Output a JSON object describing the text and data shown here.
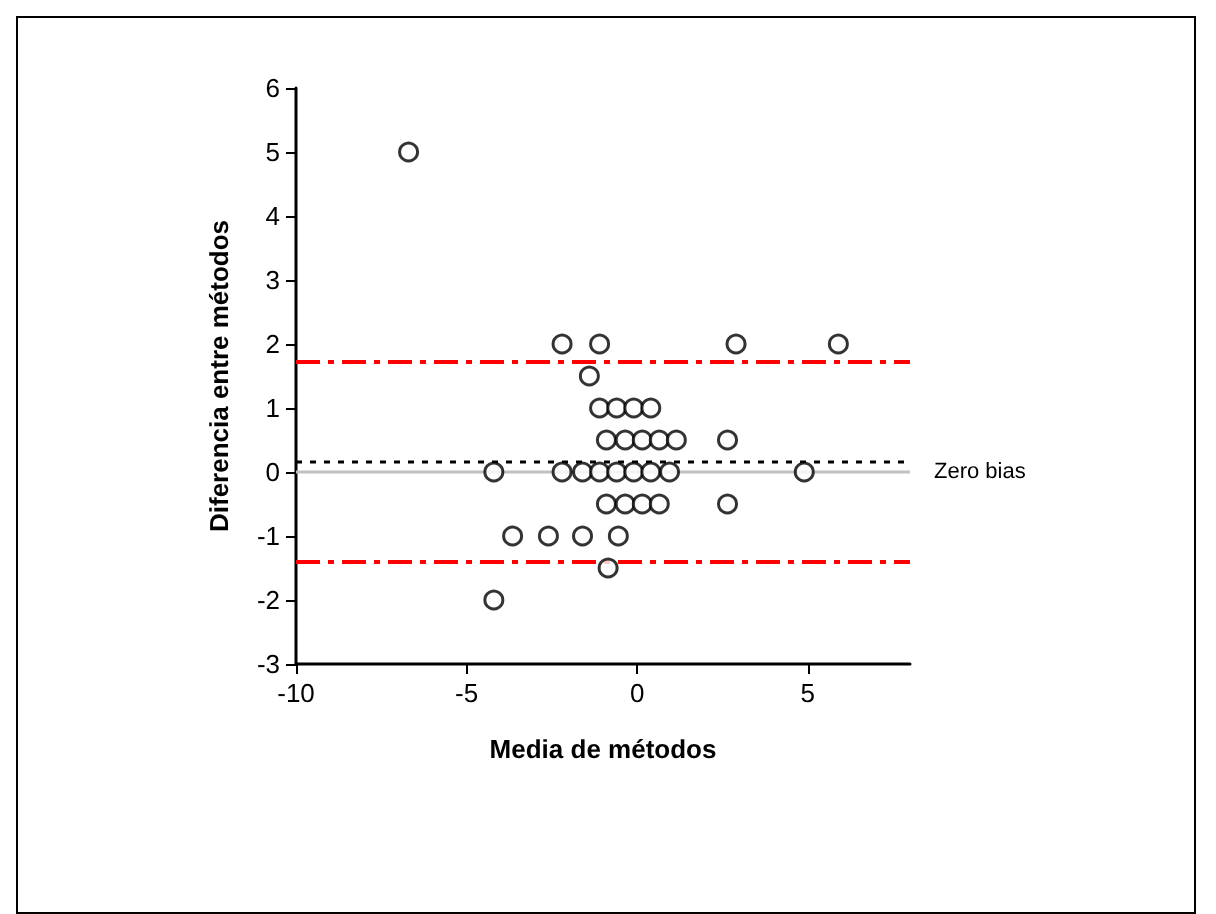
{
  "chart_data": {
    "type": "scatter",
    "xlabel": "Media de métodos",
    "ylabel": "Diferencia entre métodos",
    "x": [
      -6.7,
      -2.2,
      -1.1,
      2.9,
      5.9,
      -1.4,
      -1.1,
      -0.6,
      -0.1,
      0.4,
      -0.9,
      -0.35,
      0.15,
      0.65,
      1.15,
      2.65,
      -4.2,
      -2.2,
      -1.6,
      -1.1,
      -0.6,
      -0.1,
      0.4,
      0.95,
      4.9,
      -0.9,
      -0.35,
      0.15,
      0.65,
      2.65,
      -3.65,
      -2.6,
      -1.6,
      -0.55,
      -0.85,
      -4.2
    ],
    "values": [
      5,
      2,
      2,
      2,
      2,
      1.5,
      1,
      1,
      1,
      1,
      0.5,
      0.5,
      0.5,
      0.5,
      0.5,
      0.5,
      0,
      0,
      0,
      0,
      0,
      0,
      0,
      0,
      0,
      -0.5,
      -0.5,
      -0.5,
      -0.5,
      -0.5,
      -1,
      -1,
      -1,
      -1,
      -1.5,
      -2
    ],
    "color": "#000000",
    "marker": "circle",
    "xlim": [
      -10,
      8
    ],
    "xticks": [
      -10,
      -5,
      0,
      5
    ],
    "ylim": [
      -3,
      6
    ],
    "yticks": [
      -3,
      -2,
      -1,
      0,
      1,
      2,
      3,
      4,
      5,
      6
    ],
    "ref_lines": [
      {
        "axis": "y",
        "value": 0,
        "label": "Zero bias",
        "color": "#c0c0c0",
        "line_style": "solid"
      },
      {
        "axis": "y",
        "value": 0.16,
        "label": null,
        "color": "#000000",
        "line_style": "dotted"
      },
      {
        "axis": "y",
        "value": 1.73,
        "label": null,
        "color": "#ff0000",
        "line_style": "dashed"
      },
      {
        "axis": "y",
        "value": -1.4,
        "label": null,
        "color": "#ff0000",
        "line_style": "dashed"
      }
    ],
    "grid": false
  }
}
